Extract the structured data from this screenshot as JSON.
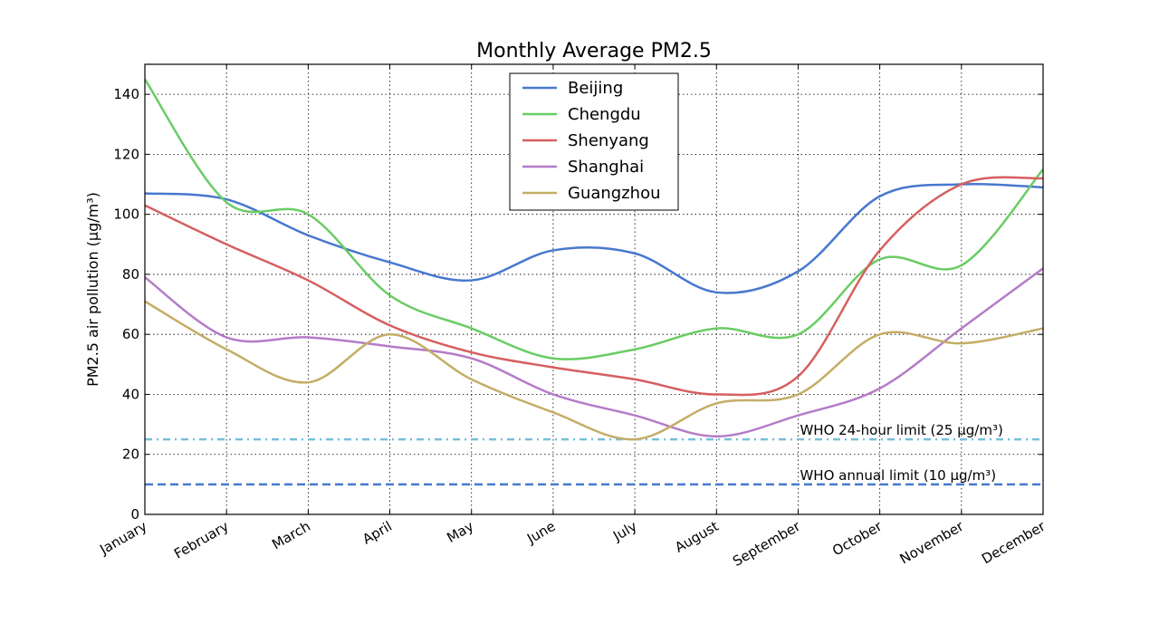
{
  "chart_data": {
    "type": "line",
    "title": "Monthly Average PM2.5",
    "xlabel": "",
    "ylabel": "PM2.5 air pollution (µg/m³)",
    "ylim": [
      0,
      150
    ],
    "yticks": [
      0,
      20,
      40,
      60,
      80,
      100,
      120,
      140
    ],
    "grid": true,
    "legend_position": "top-center",
    "categories": [
      "January",
      "February",
      "March",
      "April",
      "May",
      "June",
      "July",
      "August",
      "September",
      "October",
      "November",
      "December"
    ],
    "series": [
      {
        "name": "Beijing",
        "color": "#4878cf",
        "values": [
          107,
          105,
          93,
          84,
          78,
          88,
          87,
          74,
          81,
          106,
          110,
          109
        ]
      },
      {
        "name": "Chengdu",
        "color": "#6acc65",
        "values": [
          145,
          104,
          100,
          73,
          62,
          52,
          55,
          62,
          60,
          85,
          83,
          115
        ]
      },
      {
        "name": "Shenyang",
        "color": "#d65f5f",
        "values": [
          103,
          90,
          78,
          63,
          54,
          49,
          45,
          40,
          46,
          88,
          110,
          112
        ]
      },
      {
        "name": "Shanghai",
        "color": "#b47cc7",
        "values": [
          79,
          59,
          59,
          56,
          52,
          40,
          33,
          26,
          33,
          42,
          62,
          82
        ]
      },
      {
        "name": "Guangzhou",
        "color": "#c4ad66",
        "values": [
          71,
          55,
          44,
          60,
          45,
          34,
          25,
          37,
          40,
          60,
          57,
          62
        ]
      }
    ],
    "reference_lines": [
      {
        "label": "WHO 24-hour limit (25 µg/m³)",
        "value": 25,
        "color": "#77bedb",
        "style": "dashdot"
      },
      {
        "label": "WHO annual limit (10 µg/m³)",
        "value": 10,
        "color": "#4878cf",
        "style": "dashed"
      }
    ]
  }
}
